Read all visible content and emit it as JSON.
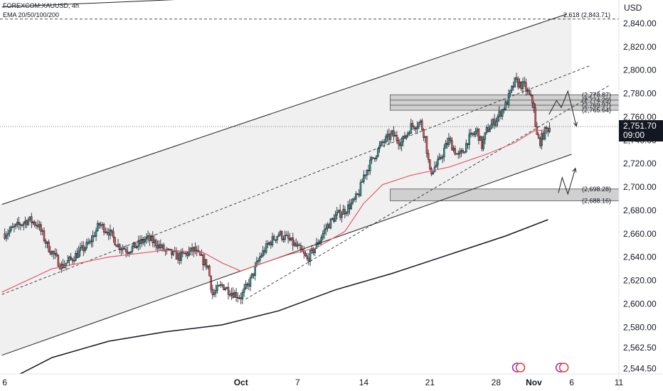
{
  "header": {
    "symbol": "FOREXCOM:XAUUSD, 4h",
    "indicator": "EMA 20/50/100/200"
  },
  "price_axis": {
    "currency": "USD",
    "current_price": "2,751.70",
    "countdown": "09:00"
  },
  "colors": {
    "bull": "#26a69a",
    "bear": "#ef5350",
    "ema_red": "#e35b6d",
    "ema_black": "#131722",
    "channel_fill": "#e6e6e6",
    "zone_fill": "#d0d0d0"
  },
  "chart_data": {
    "type": "candlestick",
    "title": "FOREXCOM:XAUUSD, 4h",
    "y_ticks": [
      "2,840.00",
      "2,820.00",
      "2,800.00",
      "2,780.00",
      "2,760.00",
      "2,740.00",
      "2,720.00",
      "2,700.00",
      "2,680.00",
      "2,660.00",
      "2,640.00",
      "2,620.00",
      "2,600.00",
      "2,580.00",
      "2,562.50",
      "2,544.50"
    ],
    "y_tick_values": [
      2840,
      2820,
      2800,
      2780,
      2760,
      2740,
      2720,
      2700,
      2680,
      2660,
      2640,
      2620,
      2600,
      2580,
      2562.5,
      2544.5
    ],
    "x_ticks": [
      "6",
      "Oct",
      "7",
      "14",
      "21",
      "28",
      "Nov",
      "6",
      "11"
    ],
    "x_tick_days": [
      -25,
      0,
      6,
      13,
      20,
      27,
      31,
      35,
      40
    ],
    "ylim": [
      2540,
      2860
    ],
    "xlim": [
      -25.5,
      40
    ],
    "levels": [
      {
        "label": "2.618 (2,843.71)",
        "value": 2843.71
      },
      {
        "label": "(2,778.87)",
        "value": 2778.87
      },
      {
        "label": "(2,774.29)",
        "value": 2774.29
      },
      {
        "label": "(2,769.97)",
        "value": 2769.97
      },
      {
        "label": "(2,765.64)",
        "value": 2765.64
      },
      {
        "label": "(2,698.28)",
        "value": 2698.28
      },
      {
        "label": "(2,688.16)",
        "value": 2688.16
      }
    ],
    "last_price": 2751.7,
    "anchors": [
      [
        -25.0,
        2660
      ],
      [
        -24.0,
        2665
      ],
      [
        -22.5,
        2672
      ],
      [
        -21.5,
        2668
      ],
      [
        -20.5,
        2650
      ],
      [
        -19.0,
        2632
      ],
      [
        -18.0,
        2638
      ],
      [
        -16.0,
        2652
      ],
      [
        -15.0,
        2668
      ],
      [
        -14.0,
        2662
      ],
      [
        -13.0,
        2650
      ],
      [
        -12.0,
        2646
      ],
      [
        -11.0,
        2650
      ],
      [
        -10.0,
        2656
      ],
      [
        -9.0,
        2652
      ],
      [
        -8.0,
        2645
      ],
      [
        -6.5,
        2640
      ],
      [
        -5.0,
        2646
      ],
      [
        -3.5,
        2632
      ],
      [
        -3.0,
        2608
      ],
      [
        -2.0,
        2616
      ],
      [
        -1.0,
        2610
      ],
      [
        0.0,
        2606
      ],
      [
        1.0,
        2620
      ],
      [
        2.0,
        2640
      ],
      [
        3.0,
        2652
      ],
      [
        4.0,
        2660
      ],
      [
        5.0,
        2655
      ],
      [
        6.0,
        2648
      ],
      [
        7.0,
        2638
      ],
      [
        8.0,
        2650
      ],
      [
        9.0,
        2665
      ],
      [
        10.0,
        2675
      ],
      [
        11.0,
        2680
      ],
      [
        12.0,
        2688
      ],
      [
        12.5,
        2695
      ],
      [
        13.0,
        2710
      ],
      [
        14.0,
        2725
      ],
      [
        15.0,
        2738
      ],
      [
        16.0,
        2745
      ],
      [
        17.0,
        2738
      ],
      [
        18.0,
        2752
      ],
      [
        19.0,
        2755
      ],
      [
        19.5,
        2742
      ],
      [
        20.0,
        2712
      ],
      [
        21.0,
        2722
      ],
      [
        21.5,
        2732
      ],
      [
        22.0,
        2740
      ],
      [
        23.0,
        2726
      ],
      [
        23.5,
        2730
      ],
      [
        24.0,
        2740
      ],
      [
        25.0,
        2748
      ],
      [
        25.5,
        2735
      ],
      [
        26.0,
        2748
      ],
      [
        27.0,
        2758
      ],
      [
        28.0,
        2770
      ],
      [
        28.5,
        2780
      ],
      [
        29.0,
        2790
      ],
      [
        30.0,
        2786
      ],
      [
        31.0,
        2770
      ],
      [
        31.2,
        2746
      ],
      [
        31.6,
        2738
      ],
      [
        32.2,
        2748
      ],
      [
        32.8,
        2752
      ]
    ],
    "ema_red": [
      [
        -25.3,
        2610
      ],
      [
        -20.0,
        2630
      ],
      [
        -14.0,
        2640
      ],
      [
        -8.0,
        2646
      ],
      [
        -4.0,
        2644
      ],
      [
        -2.0,
        2635
      ],
      [
        0.0,
        2628
      ],
      [
        2.0,
        2634
      ],
      [
        5.0,
        2642
      ],
      [
        8.0,
        2648
      ],
      [
        11.0,
        2662
      ],
      [
        13.0,
        2686
      ],
      [
        15.0,
        2702
      ],
      [
        18.0,
        2710
      ],
      [
        22.0,
        2717
      ],
      [
        26.0,
        2728
      ],
      [
        29.0,
        2738
      ],
      [
        31.0,
        2748
      ],
      [
        32.5,
        2749
      ]
    ],
    "ema_black": [
      [
        -25.3,
        2532
      ],
      [
        -20.0,
        2554
      ],
      [
        -14.0,
        2568
      ],
      [
        -8.0,
        2576
      ],
      [
        -2.0,
        2582
      ],
      [
        4.0,
        2594
      ],
      [
        10.0,
        2612
      ],
      [
        16.0,
        2626
      ],
      [
        22.0,
        2642
      ],
      [
        28.0,
        2658
      ],
      [
        32.5,
        2672
      ]
    ],
    "channel": {
      "upper": [
        [
          -25.3,
          2685
        ],
        [
          34.5,
          2848
        ]
      ],
      "lower": [
        [
          -25.3,
          2556
        ],
        [
          35.0,
          2728
        ]
      ],
      "right_day": 35.0
    }
  }
}
